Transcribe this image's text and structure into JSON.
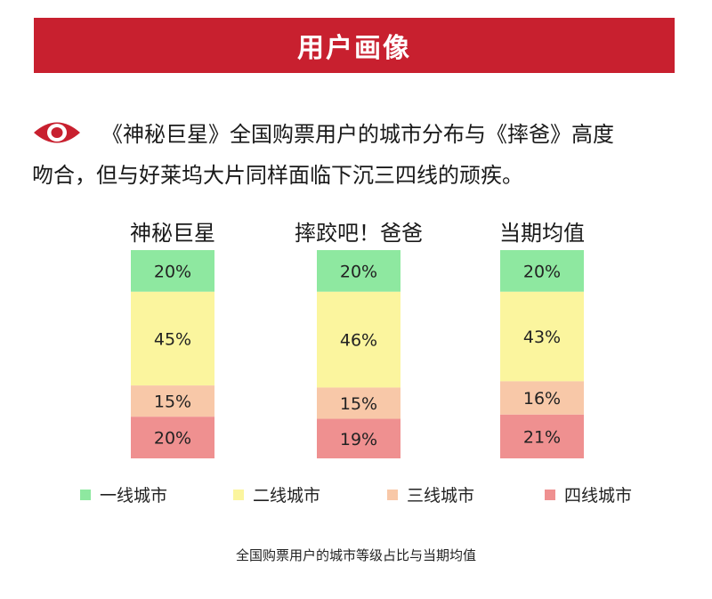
{
  "header": {
    "title": "用户画像"
  },
  "intro": {
    "line1": "《神秘巨星》全国购票用户的城市分布与《摔爸》高度",
    "line2": "吻合，但与好莱坞大片同样面临下沉三四线的顽疾。",
    "icon": "eye-icon"
  },
  "colors": {
    "banner": "#c8202f",
    "tier1": "#8ee8a0",
    "tier2": "#fbf59e",
    "tier3": "#f8c8a8",
    "tier4": "#ef9090"
  },
  "chart_data": {
    "type": "bar",
    "stacked": true,
    "percent": true,
    "categories": [
      "神秘巨星",
      "摔跤吧！爸爸",
      "当期均值"
    ],
    "series": [
      {
        "name": "一线城市",
        "values": [
          20,
          20,
          20
        ],
        "labels": [
          "20%",
          "20%",
          "20%"
        ]
      },
      {
        "name": "二线城市",
        "values": [
          45,
          46,
          43
        ],
        "labels": [
          "45%",
          "46%",
          "43%"
        ]
      },
      {
        "name": "三线城市",
        "values": [
          15,
          15,
          16
        ],
        "labels": [
          "15%",
          "15%",
          "16%"
        ]
      },
      {
        "name": "四线城市",
        "values": [
          20,
          19,
          21
        ],
        "labels": [
          "20%",
          "19%",
          "21%"
        ]
      }
    ],
    "legend_position": "bottom",
    "caption": "全国购票用户的城市等级占比与当期均值"
  }
}
